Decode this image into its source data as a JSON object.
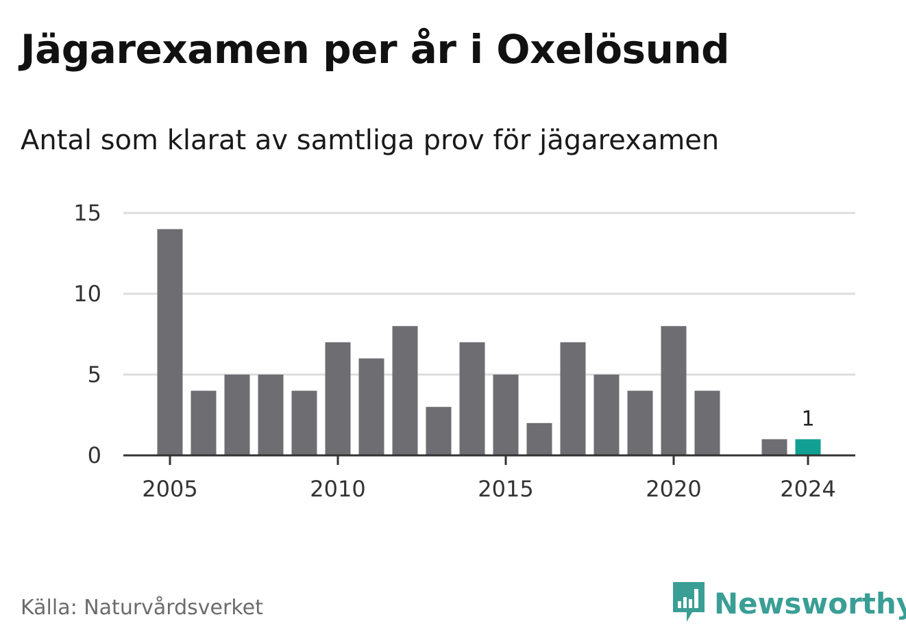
{
  "title": "Jägarexamen per år i Oxelösund",
  "subtitle": "Antal som klarat av samtliga prov för jägarexamen",
  "source": "Källa: Naturvårdsverket",
  "brand": {
    "name": "Newsworthy",
    "icon": "newsworthy-logo-icon",
    "color": "#3a9e95"
  },
  "colors": {
    "bar": "#6e6d72",
    "highlight": "#12a095",
    "grid": "#dddddd",
    "axis": "#333333"
  },
  "chart_data": {
    "type": "bar",
    "categories": [
      "2005",
      "2006",
      "2007",
      "2008",
      "2009",
      "2010",
      "2011",
      "2012",
      "2013",
      "2014",
      "2015",
      "2016",
      "2017",
      "2018",
      "2019",
      "2020",
      "2021",
      "2022",
      "2023",
      "2024"
    ],
    "values": [
      14,
      4,
      5,
      5,
      4,
      7,
      6,
      8,
      3,
      7,
      5,
      2,
      7,
      5,
      4,
      8,
      4,
      0,
      1,
      1
    ],
    "x_tick_labels": [
      "2005",
      "2010",
      "2015",
      "2020",
      "2024"
    ],
    "y_ticks": [
      0,
      5,
      10,
      15
    ],
    "ylim": [
      0,
      15
    ],
    "grid": true,
    "highlight": {
      "category": "2024",
      "label": "1"
    },
    "xlabel": "",
    "ylabel": ""
  }
}
